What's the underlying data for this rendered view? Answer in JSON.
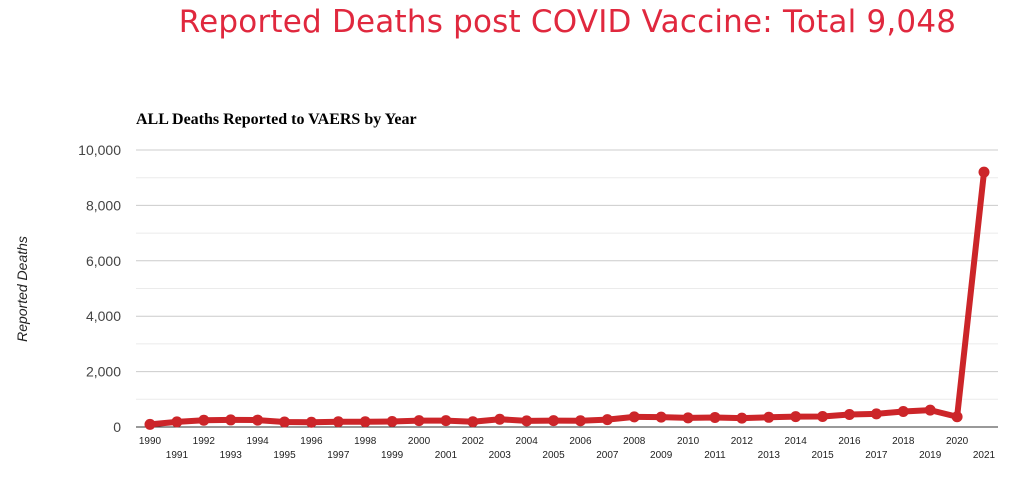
{
  "banner": {
    "title": "Reported Deaths post COVID Vaccine: Total 9,048"
  },
  "chart_data": {
    "type": "line",
    "title": "ALL Deaths Reported to VAERS by Year",
    "xlabel": "",
    "ylabel": "Reported Deaths",
    "ylim": [
      0,
      10000
    ],
    "yticks": [
      0,
      2000,
      4000,
      6000,
      8000,
      10000
    ],
    "ytick_labels": [
      "0",
      "2,000",
      "4,000",
      "6,000",
      "8,000",
      "10,000"
    ],
    "categories": [
      "1990",
      "1991",
      "1992",
      "1993",
      "1994",
      "1995",
      "1996",
      "1997",
      "1998",
      "1999",
      "2000",
      "2001",
      "2002",
      "2003",
      "2004",
      "2005",
      "2006",
      "2007",
      "2008",
      "2009",
      "2010",
      "2011",
      "2012",
      "2013",
      "2014",
      "2015",
      "2016",
      "2017",
      "2018",
      "2019",
      "2020",
      "2021"
    ],
    "series": [
      {
        "name": "Reported Deaths",
        "values": [
          95,
          185,
          245,
          255,
          250,
          180,
          170,
          190,
          190,
          200,
          230,
          230,
          190,
          280,
          220,
          230,
          225,
          265,
          365,
          355,
          330,
          345,
          320,
          350,
          375,
          380,
          450,
          475,
          560,
          610,
          370,
          9200
        ]
      }
    ],
    "grid": true,
    "colors": {
      "line": "#cc2529",
      "grid": "#cccccc",
      "minor_grid": "#ebebeb",
      "title": "#e0283e"
    }
  }
}
